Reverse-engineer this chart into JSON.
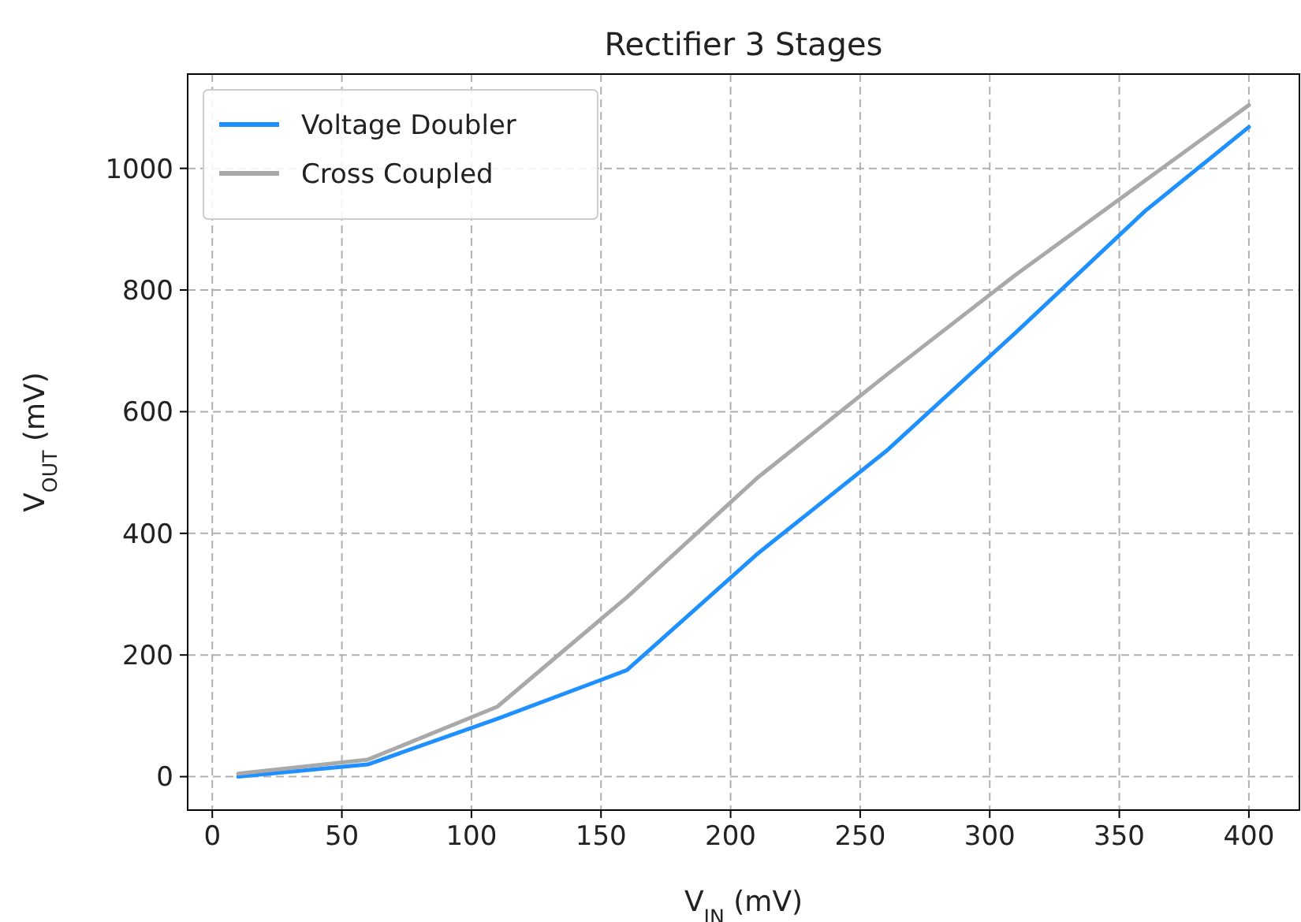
{
  "chart_data": {
    "type": "line",
    "title": "Rectifier 3 Stages",
    "xlabel": "V$_{IN}$ (mV)",
    "ylabel": "V$_{OUT}$ (mV)",
    "x": [
      10,
      60,
      110,
      160,
      210,
      260,
      310,
      360,
      400
    ],
    "series": [
      {
        "name": "Voltage Doubler",
        "color": "#1e90ff",
        "values": [
          0,
          20,
          95,
          175,
          365,
          535,
          730,
          930,
          1068
        ]
      },
      {
        "name": "Cross Coupled",
        "color": "#a9a9a9",
        "values": [
          5,
          28,
          115,
          295,
          490,
          660,
          825,
          980,
          1104
        ]
      }
    ],
    "xlim": [
      -9.5,
      419.5
    ],
    "ylim": [
      -55,
      1155
    ],
    "xticks": [
      0,
      50,
      100,
      150,
      200,
      250,
      300,
      350,
      400
    ],
    "yticks": [
      0,
      200,
      400,
      600,
      800,
      1000
    ],
    "grid": true,
    "legend": "top left",
    "marker": "none",
    "line_style": "solid"
  }
}
